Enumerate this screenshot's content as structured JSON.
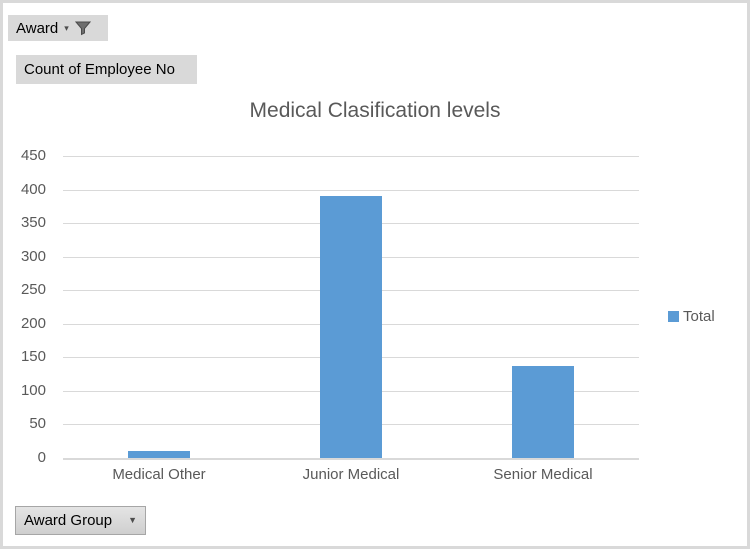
{
  "filter_button": {
    "label": "Award",
    "icon": "funnel-icon"
  },
  "value_field_button": {
    "label": "Count of Employee No"
  },
  "axis_field_button": {
    "label": "Award Group",
    "icon": "chevron-down-icon"
  },
  "chart_data": {
    "type": "bar",
    "title": "Medical Clasification levels",
    "categories": [
      "Medical Other",
      "Junior Medical",
      "Senior Medical"
    ],
    "series": [
      {
        "name": "Total",
        "values": [
          10,
          390,
          137
        ]
      }
    ],
    "xlabel": "",
    "ylabel": "",
    "ylim": [
      0,
      450
    ],
    "ytick_step": 50,
    "yticks": [
      0,
      50,
      100,
      150,
      200,
      250,
      300,
      350,
      400,
      450
    ],
    "grid": true,
    "legend_position": "right"
  },
  "colors": {
    "bar": "#5b9bd5",
    "gridline": "#d9d9d9",
    "axis_text": "#595959",
    "title_text": "#595959",
    "button_bg": "#d9d9d9",
    "border": "#d9d9d9"
  }
}
